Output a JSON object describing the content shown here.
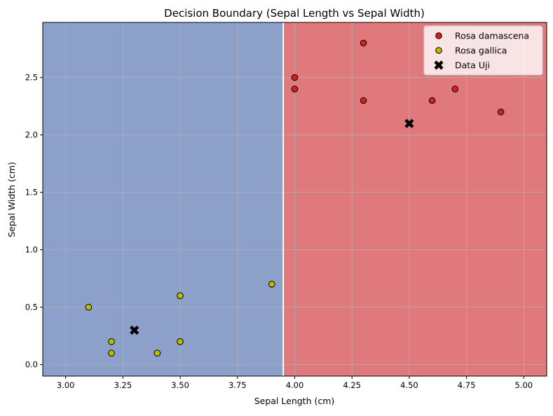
{
  "chart_data": {
    "type": "scatter",
    "title": "Decision Boundary (Sepal Length vs Sepal Width)",
    "xlabel": "Sepal Length (cm)",
    "ylabel": "Sepal Width (cm)",
    "xlim": [
      2.9,
      5.1
    ],
    "ylim": [
      -0.1,
      2.98
    ],
    "xticks": [
      3.0,
      3.25,
      3.5,
      3.75,
      4.0,
      4.25,
      4.5,
      4.75,
      5.0
    ],
    "xtick_labels": [
      "3.00",
      "3.25",
      "3.50",
      "3.75",
      "4.00",
      "4.25",
      "4.50",
      "4.75",
      "5.00"
    ],
    "yticks": [
      0.0,
      0.5,
      1.0,
      1.5,
      2.0,
      2.5
    ],
    "ytick_labels": [
      "0.0",
      "0.5",
      "1.0",
      "1.5",
      "2.0",
      "2.5"
    ],
    "grid": true,
    "legend_position": "top-right",
    "decision_boundary_x": 3.95,
    "regions": [
      {
        "class": "Rosa gallica",
        "side": "left",
        "color": "#8ca0c9"
      },
      {
        "class": "Rosa damascena",
        "side": "right",
        "color": "#df797c"
      }
    ],
    "series": [
      {
        "name": "Rosa damascena",
        "marker": "circle",
        "color": "#e31a1c",
        "points": [
          [
            4.0,
            2.5
          ],
          [
            4.0,
            2.4
          ],
          [
            4.3,
            2.8
          ],
          [
            4.3,
            2.3
          ],
          [
            4.6,
            2.3
          ],
          [
            4.7,
            2.4
          ],
          [
            4.9,
            2.2
          ]
        ]
      },
      {
        "name": "Rosa gallica",
        "marker": "circle",
        "color": "#bcbd00",
        "points": [
          [
            3.1,
            0.5
          ],
          [
            3.2,
            0.2
          ],
          [
            3.2,
            0.1
          ],
          [
            3.4,
            0.1
          ],
          [
            3.5,
            0.6
          ],
          [
            3.5,
            0.2
          ],
          [
            3.9,
            0.7
          ]
        ]
      },
      {
        "name": "Data Uji",
        "marker": "x",
        "color": "#000000",
        "points": [
          [
            4.5,
            2.1
          ],
          [
            3.3,
            0.3
          ]
        ]
      }
    ]
  }
}
